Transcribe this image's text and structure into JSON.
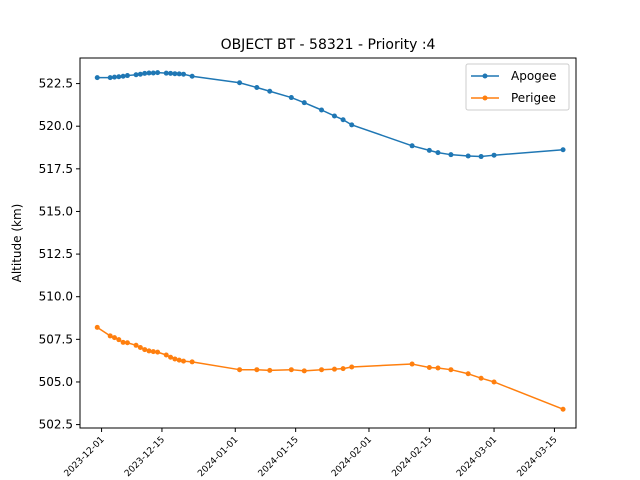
{
  "chart_data": {
    "type": "line",
    "title": "OBJECT BT - 58321 - Priority :4",
    "xlabel": "",
    "ylabel": "Altitude (km)",
    "xlim": [
      "2023-11-26",
      "2024-03-20"
    ],
    "ylim": [
      502.3,
      524.0
    ],
    "x_ticks": [
      "2023-12-01",
      "2023-12-15",
      "2024-01-01",
      "2024-01-15",
      "2024-02-01",
      "2024-02-15",
      "2024-03-01",
      "2024-03-15"
    ],
    "y_ticks": [
      502.5,
      505.0,
      507.5,
      510.0,
      512.5,
      515.0,
      517.5,
      520.0,
      522.5
    ],
    "legend_position": "top-right",
    "grid": false,
    "series": [
      {
        "name": "Apogee",
        "color": "#1f77b4",
        "x": [
          "2023-11-30",
          "2023-12-03",
          "2023-12-04",
          "2023-12-05",
          "2023-12-06",
          "2023-12-07",
          "2023-12-09",
          "2023-12-10",
          "2023-12-11",
          "2023-12-12",
          "2023-12-13",
          "2023-12-14",
          "2023-12-16",
          "2023-12-17",
          "2023-12-18",
          "2023-12-19",
          "2023-12-20",
          "2023-12-22",
          "2024-01-02",
          "2024-01-06",
          "2024-01-09",
          "2024-01-14",
          "2024-01-17",
          "2024-01-21",
          "2024-01-24",
          "2024-01-26",
          "2024-01-28",
          "2024-02-11",
          "2024-02-15",
          "2024-02-17",
          "2024-02-20",
          "2024-02-24",
          "2024-02-27",
          "2024-03-01",
          "2024-03-17"
        ],
        "y": [
          522.85,
          522.85,
          522.88,
          522.9,
          522.93,
          522.97,
          523.02,
          523.05,
          523.1,
          523.12,
          523.12,
          523.14,
          523.11,
          523.1,
          523.08,
          523.07,
          523.05,
          522.93,
          522.55,
          522.27,
          522.05,
          521.68,
          521.38,
          520.95,
          520.6,
          520.38,
          520.08,
          518.85,
          518.58,
          518.45,
          518.33,
          518.25,
          518.22,
          518.3,
          518.62
        ]
      },
      {
        "name": "Perigee",
        "color": "#ff7f0e",
        "x": [
          "2023-11-30",
          "2023-12-03",
          "2023-12-04",
          "2023-12-05",
          "2023-12-06",
          "2023-12-07",
          "2023-12-09",
          "2023-12-10",
          "2023-12-11",
          "2023-12-12",
          "2023-12-13",
          "2023-12-14",
          "2023-12-16",
          "2023-12-17",
          "2023-12-18",
          "2023-12-19",
          "2023-12-20",
          "2023-12-22",
          "2024-01-02",
          "2024-01-06",
          "2024-01-09",
          "2024-01-14",
          "2024-01-17",
          "2024-01-21",
          "2024-01-24",
          "2024-01-26",
          "2024-01-28",
          "2024-02-11",
          "2024-02-15",
          "2024-02-17",
          "2024-02-20",
          "2024-02-24",
          "2024-02-27",
          "2024-03-01",
          "2024-03-17"
        ],
        "y": [
          508.2,
          507.7,
          507.6,
          507.48,
          507.32,
          507.3,
          507.15,
          507.02,
          506.9,
          506.82,
          506.78,
          506.75,
          506.58,
          506.45,
          506.35,
          506.28,
          506.22,
          506.18,
          505.72,
          505.72,
          505.68,
          505.72,
          505.65,
          505.72,
          505.75,
          505.78,
          505.88,
          506.05,
          505.85,
          505.82,
          505.72,
          505.48,
          505.22,
          505.0,
          503.4
        ]
      }
    ]
  }
}
